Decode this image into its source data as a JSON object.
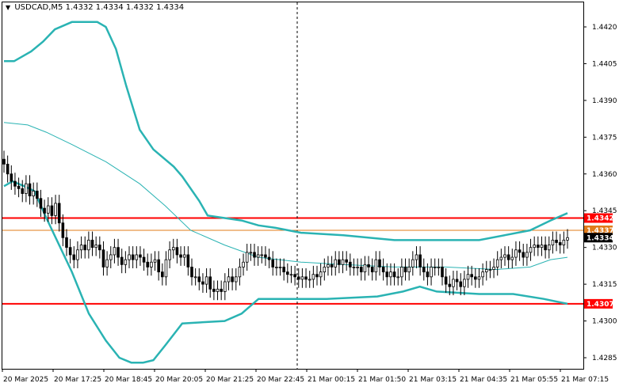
{
  "header": {
    "symbol": "USDCAD,M5",
    "ohlc": "1.4332 1.4334 1.4332 1.4334"
  },
  "colors": {
    "background": "#ffffff",
    "candle": "#000000",
    "bollinger": "#2ab3b3",
    "support_resistance": "#ff0000",
    "current_level_line": "#e07b1a",
    "current_price_box": "#000000"
  },
  "icons": {
    "title_marker": "triangle-down-icon"
  },
  "chart_data": {
    "type": "candlestick",
    "title": "",
    "y_ticks": [
      "1.4420",
      "1.4405",
      "1.4390",
      "1.4375",
      "1.4360",
      "1.4345",
      "1.4330",
      "1.4315",
      "1.4300",
      "1.4285"
    ],
    "y_tick_values": [
      1.442,
      1.4405,
      1.439,
      1.4375,
      1.436,
      1.4345,
      1.433,
      1.4315,
      1.43,
      1.4285
    ],
    "ylim": [
      1.4281,
      1.4425
    ],
    "x_ticks": [
      "20 Mar 2025",
      "20 Mar 17:25",
      "20 Mar 18:45",
      "20 Mar 20:05",
      "20 Mar 21:25",
      "20 Mar 22:45",
      "21 Mar 00:15",
      "21 Mar 01:50",
      "21 Mar 03:15",
      "21 Mar 04:35",
      "21 Mar 05:55",
      "21 Mar 07:15"
    ],
    "vertical_marker_x": "20 Mar 22:45",
    "horizontal_levels": [
      {
        "value": 1.4342,
        "label": "1.4342",
        "color": "#ff0000"
      },
      {
        "value": 1.4337,
        "label": "1.4337",
        "color": "#e07b1a"
      },
      {
        "value": 1.4307,
        "label": "1.4307",
        "color": "#ff0000"
      }
    ],
    "current_price": {
      "value": 1.4334,
      "label": "1.4334"
    },
    "series": [
      {
        "type": "candles",
        "closes": [
          1.4364,
          1.436,
          1.4357,
          1.4355,
          1.4354,
          1.4352,
          1.4356,
          1.4351,
          1.4353,
          1.435,
          1.4346,
          1.4344,
          1.4347,
          1.4343,
          1.4348,
          1.434,
          1.4334,
          1.433,
          1.4327,
          1.4325,
          1.4329,
          1.4331,
          1.4329,
          1.4333,
          1.433,
          1.4331,
          1.4329,
          1.4322,
          1.4325,
          1.4327,
          1.433,
          1.4326,
          1.4323,
          1.4325,
          1.4327,
          1.4325,
          1.4327,
          1.4326,
          1.4324,
          1.4322,
          1.4324,
          1.4325,
          1.432,
          1.4318,
          1.4325,
          1.4329,
          1.433,
          1.4327,
          1.4326,
          1.4327,
          1.4322,
          1.4318,
          1.4318,
          1.4316,
          1.4315,
          1.4318,
          1.4313,
          1.4312,
          1.4313,
          1.4312,
          1.4316,
          1.4318,
          1.4316,
          1.4318,
          1.4322,
          1.4324,
          1.4328,
          1.4328,
          1.4326,
          1.4327,
          1.4327,
          1.4326,
          1.4325,
          1.4322,
          1.4322,
          1.4322,
          1.432,
          1.4319,
          1.4319,
          1.4318,
          1.4317,
          1.4318,
          1.4317,
          1.4317,
          1.4319,
          1.4318,
          1.432,
          1.4322,
          1.4323,
          1.4322,
          1.4325,
          1.4323,
          1.4325,
          1.4324,
          1.4322,
          1.4322,
          1.4322,
          1.432,
          1.4323,
          1.4322,
          1.432,
          1.4325,
          1.4322,
          1.432,
          1.4318,
          1.432,
          1.4318,
          1.4318,
          1.4322,
          1.432,
          1.4322,
          1.4325,
          1.4327,
          1.4322,
          1.432,
          1.4318,
          1.4322,
          1.4322,
          1.4322,
          1.4318,
          1.4315,
          1.4314,
          1.4317,
          1.4316,
          1.4314,
          1.4317,
          1.4319,
          1.4318,
          1.4317,
          1.4318,
          1.432,
          1.4321,
          1.4321,
          1.4322,
          1.4325,
          1.4326,
          1.4327,
          1.4325,
          1.4326,
          1.4329,
          1.4328,
          1.4326,
          1.4328,
          1.433,
          1.4331,
          1.433,
          1.4331,
          1.4329,
          1.4331,
          1.4333,
          1.4332,
          1.4331,
          1.4333,
          1.4334
        ]
      },
      {
        "name": "Bollinger Upper",
        "type": "line",
        "points": [
          [
            0,
            1.4406
          ],
          [
            6,
            1.4406
          ],
          [
            16,
            1.441
          ],
          [
            23,
            1.4414
          ],
          [
            30,
            1.4419
          ],
          [
            40,
            1.4422
          ],
          [
            55,
            1.4422
          ],
          [
            60,
            1.442
          ],
          [
            66,
            1.4411
          ],
          [
            72,
            1.4396
          ],
          [
            80,
            1.4378
          ],
          [
            88,
            1.437
          ],
          [
            100,
            1.4363
          ],
          [
            105,
            1.4359
          ],
          [
            115,
            1.4349
          ],
          [
            120,
            1.4343
          ],
          [
            130,
            1.4342
          ],
          [
            140,
            1.4341
          ],
          [
            150,
            1.4339
          ],
          [
            160,
            1.4338
          ],
          [
            175,
            1.4336
          ],
          [
            200,
            1.4335
          ],
          [
            230,
            1.4333
          ],
          [
            260,
            1.4333
          ],
          [
            280,
            1.4333
          ],
          [
            295,
            1.4335
          ],
          [
            310,
            1.4337
          ],
          [
            322,
            1.4341
          ],
          [
            332,
            1.4344
          ]
        ]
      },
      {
        "name": "Bollinger Middle",
        "type": "line",
        "points": [
          [
            0,
            1.4381
          ],
          [
            14,
            1.438
          ],
          [
            25,
            1.4377
          ],
          [
            40,
            1.4372
          ],
          [
            60,
            1.4365
          ],
          [
            80,
            1.4356
          ],
          [
            95,
            1.4347
          ],
          [
            110,
            1.4337
          ],
          [
            130,
            1.4331
          ],
          [
            150,
            1.4326
          ],
          [
            175,
            1.4324
          ],
          [
            200,
            1.4323
          ],
          [
            230,
            1.4322
          ],
          [
            260,
            1.4322
          ],
          [
            290,
            1.4321
          ],
          [
            310,
            1.4322
          ],
          [
            322,
            1.4325
          ],
          [
            332,
            1.4326
          ]
        ]
      },
      {
        "name": "Bollinger Lower",
        "type": "line",
        "points": [
          [
            0,
            1.4355
          ],
          [
            5,
            1.4357
          ],
          [
            12,
            1.4355
          ],
          [
            18,
            1.4353
          ],
          [
            25,
            1.4342
          ],
          [
            40,
            1.432
          ],
          [
            50,
            1.4303
          ],
          [
            60,
            1.4292
          ],
          [
            68,
            1.4285
          ],
          [
            75,
            1.4283
          ],
          [
            82,
            1.4283
          ],
          [
            88,
            1.4284
          ],
          [
            95,
            1.429
          ],
          [
            105,
            1.4299
          ],
          [
            130,
            1.43
          ],
          [
            140,
            1.4303
          ],
          [
            150,
            1.4309
          ],
          [
            160,
            1.4309
          ],
          [
            190,
            1.4309
          ],
          [
            220,
            1.431
          ],
          [
            235,
            1.4312
          ],
          [
            245,
            1.4314
          ],
          [
            255,
            1.4312
          ],
          [
            280,
            1.4311
          ],
          [
            300,
            1.4311
          ],
          [
            318,
            1.4309
          ],
          [
            332,
            1.4307
          ]
        ]
      }
    ]
  }
}
